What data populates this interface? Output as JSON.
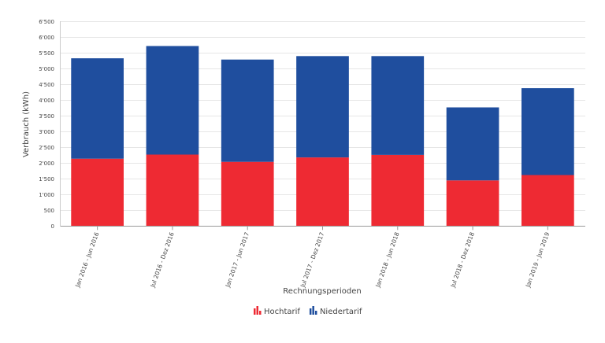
{
  "chart_data": {
    "type": "bar",
    "stacked": true,
    "title": "",
    "xlabel": "Rechnungsperioden",
    "ylabel": "Verbrauch (kWh)",
    "ylim": [
      0,
      6500
    ],
    "ytick_step": 500,
    "yticks": [
      "0",
      "500",
      "1'000",
      "1'500",
      "2'000",
      "2'500",
      "3'000",
      "3'500",
      "4'000",
      "4'500",
      "5'000",
      "5'500",
      "6'000",
      "6'500"
    ],
    "grid": true,
    "legend_position": "bottom-center",
    "categories": [
      "Jan 2016 - Jun 2016",
      "Jul 2016 - Dez 2016",
      "Jan 2017 - Jun 2017",
      "Jul 2017 - Dez 2017",
      "Jan 2018 - Jun 2018",
      "Jul 2018 - Dez 2018",
      "Jan 2019 - Jun 2019"
    ],
    "series": [
      {
        "name": "Hochtarif",
        "color": "#ee2a33",
        "values": [
          2140,
          2270,
          2040,
          2180,
          2260,
          1450,
          1620
        ]
      },
      {
        "name": "Niedertarif",
        "color": "#1f4e9e",
        "values": [
          3190,
          3450,
          3250,
          3220,
          3140,
          2320,
          2760
        ]
      }
    ]
  }
}
